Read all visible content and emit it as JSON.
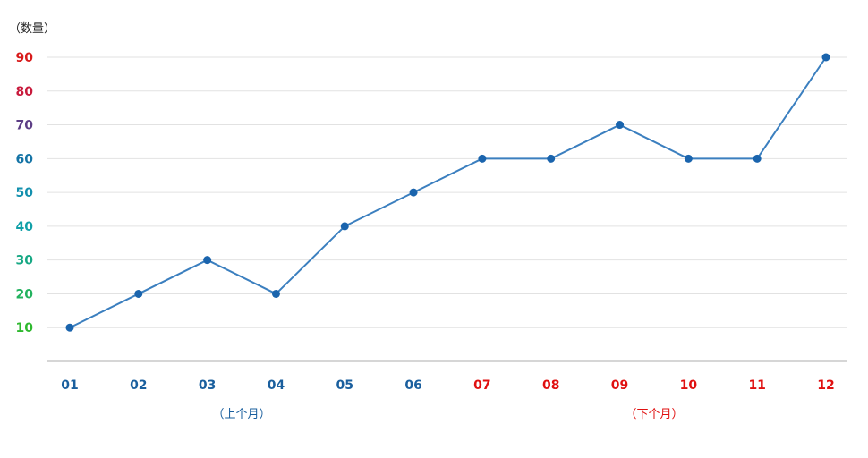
{
  "chart_data": {
    "type": "line",
    "y_unit_label": "（数量）",
    "categories": [
      "01",
      "02",
      "03",
      "04",
      "05",
      "06",
      "07",
      "08",
      "09",
      "10",
      "11",
      "12"
    ],
    "series": [
      {
        "values": [
          10,
          20,
          30,
          20,
          40,
          50,
          60,
          60,
          70,
          60,
          60,
          90
        ]
      }
    ],
    "ylim": [
      0,
      90
    ],
    "yticks": [
      10,
      20,
      30,
      40,
      50,
      60,
      70,
      80,
      90
    ],
    "ytick_colors": [
      "#2eb82e",
      "#22b25e",
      "#17a884",
      "#11a0a8",
      "#1390ae",
      "#1574a6",
      "#5d3e86",
      "#c81a3c",
      "#d81b1b"
    ],
    "xtick_colors": [
      "#1a5f9e",
      "#1a5f9e",
      "#1a5f9e",
      "#1a5f9e",
      "#1a5f9e",
      "#1a5f9e",
      "#e01010",
      "#e01010",
      "#e01010",
      "#e01010",
      "#e01010",
      "#e01010"
    ],
    "group_labels": [
      {
        "text": "（上个月）",
        "color": "#1a5f9e",
        "span": [
          0,
          5
        ]
      },
      {
        "text": "（下个月）",
        "color": "#e01010",
        "span": [
          6,
          11
        ]
      }
    ],
    "line_color": "#3b7fbf",
    "marker_color": "#1a64ad",
    "grid": true
  }
}
